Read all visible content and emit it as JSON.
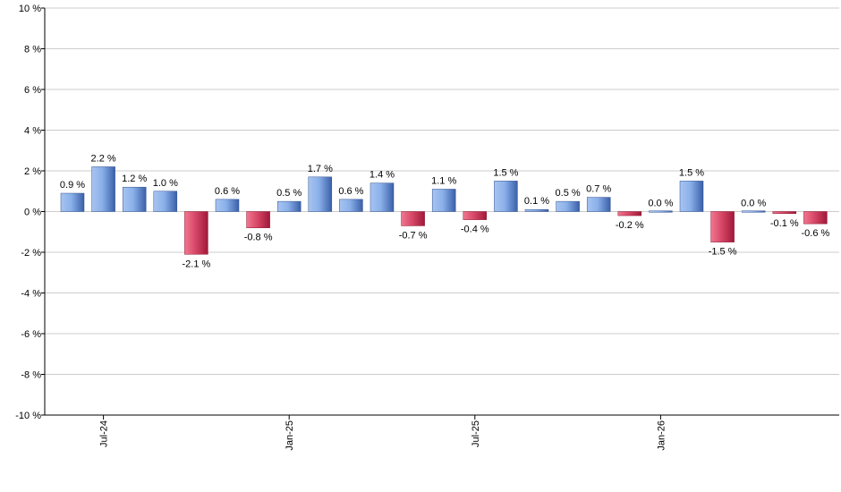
{
  "chart_data": {
    "type": "bar",
    "ylim": [
      -10,
      10
    ],
    "y_ticks": [
      "10 %",
      "8 %",
      "6 %",
      "4 %",
      "2 %",
      "0 %",
      "-2 %",
      "-4 %",
      "-6 %",
      "-8 %",
      "-10 %"
    ],
    "x_ticks": [
      {
        "label": "Jul-24",
        "index": 1
      },
      {
        "label": "Jan-25",
        "index": 7
      },
      {
        "label": "Jul-25",
        "index": 13
      },
      {
        "label": "Jan-26",
        "index": 19
      }
    ],
    "values": [
      0.9,
      2.2,
      1.2,
      1.0,
      -2.1,
      0.6,
      -0.8,
      0.5,
      1.7,
      0.6,
      1.4,
      -0.7,
      1.1,
      -0.4,
      1.5,
      0.1,
      0.5,
      0.7,
      -0.2,
      0.0,
      1.5,
      -1.5,
      0.0,
      -0.1,
      -0.6
    ],
    "labels": [
      "0.9 %",
      "2.2 %",
      "1.2 %",
      "1.0 %",
      "-2.1 %",
      "0.6 %",
      "-0.8 %",
      "0.5 %",
      "1.7 %",
      "0.6 %",
      "1.4 %",
      "-0.7 %",
      "1.1 %",
      "-0.4 %",
      "1.5 %",
      "0.1 %",
      "0.5 %",
      "0.7 %",
      "-0.2 %",
      "0.0 %",
      "1.5 %",
      "-1.5 %",
      "0.0 %",
      "-0.1 %",
      "-0.6 %"
    ],
    "grid": true,
    "colors": {
      "positive_light": "#a8c4f0",
      "positive_dark": "#3a5fa8",
      "negative_light": "#f07890",
      "negative_dark": "#a01838",
      "grid": "#cccccc",
      "axis": "#000000"
    }
  }
}
